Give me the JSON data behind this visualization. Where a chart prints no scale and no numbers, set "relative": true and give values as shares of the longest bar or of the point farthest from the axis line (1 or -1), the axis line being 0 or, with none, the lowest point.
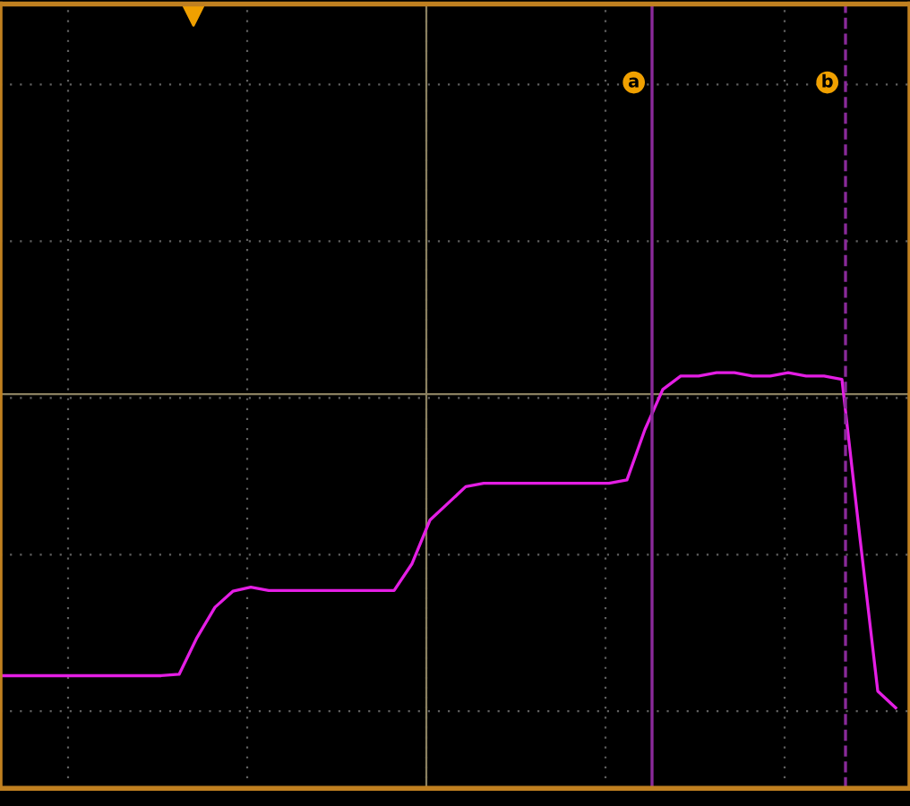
{
  "chart_data": {
    "type": "line",
    "relative": true,
    "categories": [
      null,
      null,
      null,
      null,
      null,
      null,
      null,
      null,
      null,
      null,
      null,
      null,
      null,
      null,
      null,
      null,
      null,
      null,
      null,
      null,
      null,
      null,
      null,
      null,
      null,
      null,
      null,
      null,
      null,
      null,
      null,
      null,
      null,
      null,
      null,
      null,
      null,
      null,
      null,
      null,
      null,
      null,
      null,
      null,
      null,
      null,
      null,
      null,
      null,
      null,
      null
    ],
    "series": [
      {
        "color": "#e41ee4",
        "values": [
          0.096,
          0.096,
          0.096,
          0.096,
          0.096,
          0.096,
          0.096,
          0.096,
          0.096,
          0.096,
          0.1,
          0.21,
          0.3,
          0.348,
          0.36,
          0.35,
          0.35,
          0.35,
          0.35,
          0.35,
          0.35,
          0.35,
          0.35,
          0.43,
          0.56,
          0.61,
          0.66,
          0.67,
          0.67,
          0.67,
          0.67,
          0.67,
          0.67,
          0.67,
          0.67,
          0.68,
          0.83,
          0.95,
          0.99,
          0.99,
          1.0,
          1.0,
          0.99,
          0.99,
          1.0,
          0.99,
          0.99,
          0.98,
          0.51,
          0.05,
          0
        ]
      }
    ],
    "ref_lines": [
      {
        "axis": "y",
        "value": 0.936,
        "color": "#8a8060"
      }
    ],
    "annotations": [
      "a",
      "b"
    ],
    "grid": true
  }
}
